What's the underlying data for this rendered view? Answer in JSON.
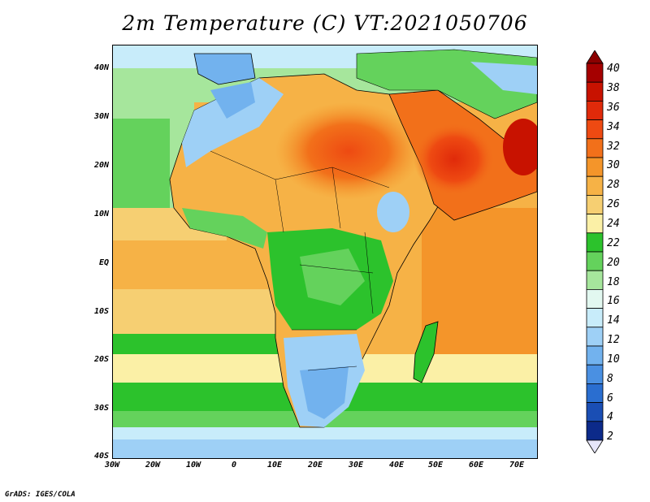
{
  "title": "2m Temperature (C) VT:2021050706",
  "credit": "GrADS: IGES/COLA",
  "lat_labels": [
    "40N",
    "30N",
    "20N",
    "10N",
    "EQ",
    "10S",
    "20S",
    "30S",
    "40S"
  ],
  "lon_labels": [
    "30W",
    "20W",
    "10W",
    "0",
    "10E",
    "20E",
    "30E",
    "40E",
    "50E",
    "60E",
    "70E"
  ],
  "colorbar": {
    "labels": [
      "40",
      "38",
      "36",
      "34",
      "32",
      "30",
      "28",
      "26",
      "24",
      "22",
      "20",
      "18",
      "16",
      "14",
      "12",
      "10",
      "8",
      "6",
      "4",
      "2"
    ],
    "colors": [
      "#a50000",
      "#c81200",
      "#e02a0a",
      "#ee4a12",
      "#f2701a",
      "#f4952a",
      "#f6b246",
      "#f6cf72",
      "#fbf0a6",
      "#2cc22c",
      "#64d25c",
      "#a6e69c",
      "#e2f8f0",
      "#c8ecfa",
      "#9ed0f6",
      "#72b2ee",
      "#4a90e2",
      "#2a6ed0",
      "#1a4eb4",
      "#0c2a8a"
    ],
    "top_arrow_color": "#8b0000",
    "bottom_arrow_color": "#e6e6fa"
  }
}
